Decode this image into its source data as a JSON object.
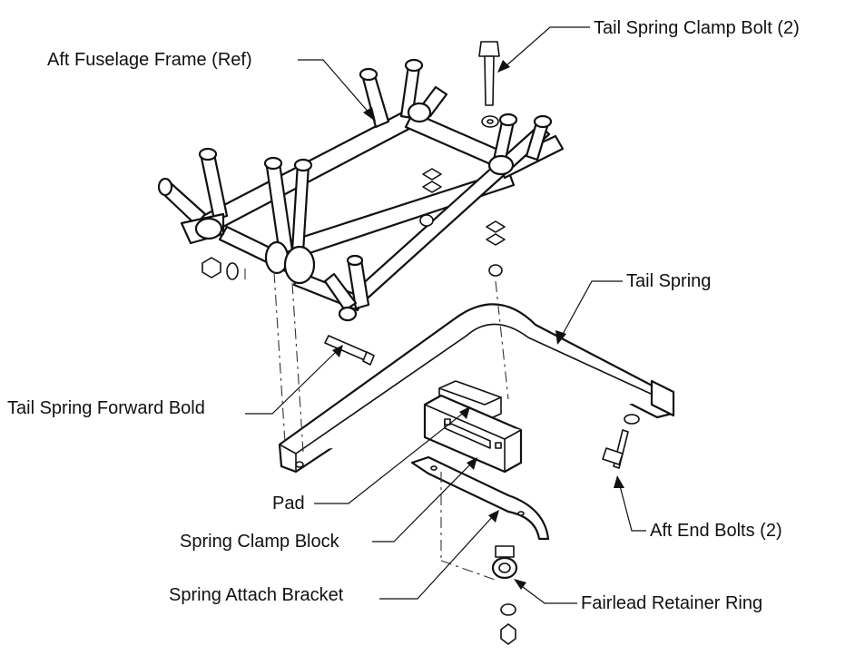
{
  "labels": {
    "tail_spring_clamp_bolt": "Tail Spring Clamp Bolt (2)",
    "aft_fuselage_frame": "Aft Fuselage Frame (Ref)",
    "tail_spring": "Tail Spring",
    "tail_spring_forward_bolt": "Tail Spring Forward Bold",
    "pad": "Pad",
    "spring_clamp_block": "Spring Clamp Block",
    "spring_attach_bracket": "Spring Attach Bracket",
    "aft_end_bolts": "Aft End Bolts (2)",
    "fairlead_retainer_ring": "Fairlead Retainer Ring"
  },
  "colors": {
    "ink": "#111111",
    "paper": "#ffffff"
  }
}
